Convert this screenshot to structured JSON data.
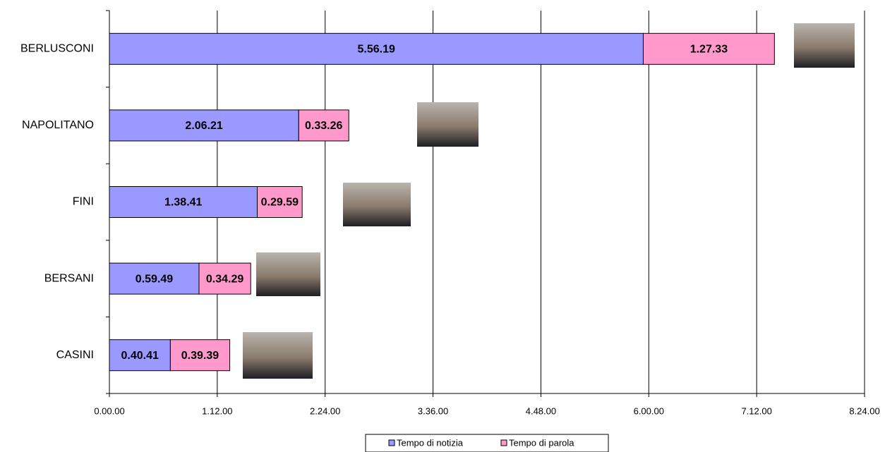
{
  "chart_data": {
    "type": "stacked-bar-horizontal",
    "categories": [
      "BERLUSCONI",
      "NAPOLITANO",
      "FINI",
      "BERSANI",
      "CASINI"
    ],
    "series": [
      {
        "name": "Tempo di notizia",
        "color": "#9999ff",
        "values": [
          21379,
          7581,
          5921,
          3589,
          2441
        ],
        "value_labels": [
          "5.56.19",
          "2.06.21",
          "1.38.41",
          "0.59.49",
          "0.40.41"
        ]
      },
      {
        "name": "Tempo di parola",
        "color": "#ff99cc",
        "values": [
          5253,
          2006,
          1799,
          2069,
          2379
        ],
        "value_labels": [
          "1.27.33",
          "0.33.26",
          "0.29.59",
          "0.34.29",
          "0.39.39"
        ]
      }
    ],
    "xlim": [
      0,
      30240
    ],
    "xticks": [
      {
        "value": 0,
        "label": "0.00.00"
      },
      {
        "value": 4320,
        "label": "1.12.00"
      },
      {
        "value": 8640,
        "label": "2.24.00"
      },
      {
        "value": 12960,
        "label": "3.36.00"
      },
      {
        "value": 17280,
        "label": "4.48.00"
      },
      {
        "value": 21600,
        "label": "6.00.00"
      },
      {
        "value": 25920,
        "label": "7.12.00"
      },
      {
        "value": 30240,
        "label": "8.24.00"
      }
    ],
    "grid": true,
    "legend": "bottom"
  }
}
